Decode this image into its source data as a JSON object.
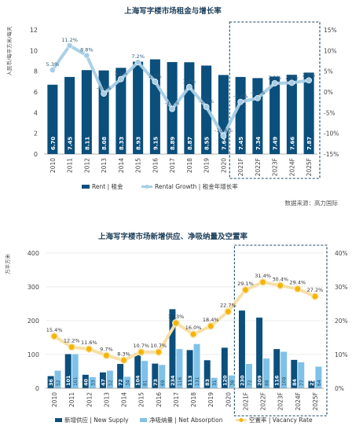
{
  "colors": {
    "bar_dark": "#0b4f7c",
    "line_light": "#a7cde6",
    "bar_light": "#7fc1e8",
    "vacancy_line": "#f7dfa6",
    "vacancy_marker": "#f4b400",
    "forecast_border": "#1d4a66",
    "axis_text": "#444444",
    "grid": "#d9d9d9"
  },
  "chart_data": [
    {
      "type": "bar",
      "title": "上海写字楼市场租金与增长率",
      "ylabel": "人民币/每平方米/每天",
      "categories": [
        "2010",
        "2011",
        "2012",
        "2013",
        "2014",
        "2015",
        "2016",
        "2017",
        "2018",
        "2019",
        "2020",
        "2021F",
        "2022F",
        "2023F",
        "2024F",
        "2025F"
      ],
      "forecast_from_index": 11,
      "ylim": [
        0,
        12
      ],
      "yticks": [
        "0",
        "2",
        "4",
        "6",
        "8",
        "10",
        "12"
      ],
      "y2lim": [
        -15,
        15
      ],
      "y2ticks": [
        "-15%",
        "-10%",
        "-5%",
        "0%",
        "5%",
        "10%",
        "15%"
      ],
      "series": [
        {
          "name": "Rent | 租金",
          "kind": "bar",
          "values": [
            6.7,
            7.45,
            8.11,
            8.08,
            8.33,
            8.93,
            9.15,
            8.89,
            8.87,
            8.55,
            7.64,
            7.45,
            7.34,
            7.49,
            7.66,
            7.87
          ],
          "labels": [
            "6.70",
            "7.45",
            "8.11",
            "8.08",
            "8.33",
            "8.93",
            "9.15",
            "8.89",
            "8.87",
            "8.55",
            "7.64",
            "7.45",
            "7.34",
            "7.49",
            "7.66",
            "7.87"
          ]
        },
        {
          "name": "Rental Growth | 租金年增长率",
          "kind": "line",
          "axis": "right",
          "values": [
            5.3,
            11.2,
            8.8,
            -0.4,
            3.1,
            7.2,
            2.5,
            -4.1,
            1.2,
            -3.6,
            -10.6,
            -2.4,
            -1.5,
            2.1,
            2.2,
            2.8
          ],
          "labels": [
            "5.3%",
            "11.2%",
            "8.8%",
            "-0.4%",
            "3.1%",
            "7.2%",
            "2.5%",
            "-4.1%",
            "1.2%",
            "-3.6%",
            "-10.6%",
            "-2.4%",
            "-1.5%",
            "2.1%",
            "2.2%",
            "2.8%"
          ]
        }
      ],
      "legend": [
        "Rent | 租金",
        "Rental Growth | 租金年增长率"
      ],
      "source": "数据来源：高力国际"
    },
    {
      "type": "bar",
      "title": "上海写字楼市场新增供应、净吸纳量及空置率",
      "ylabel": "万平方米",
      "categories": [
        "2010",
        "2011",
        "2012",
        "2013",
        "2014",
        "2015",
        "2016",
        "2017",
        "2018",
        "2019",
        "2020",
        "2021F",
        "2022F",
        "2023F",
        "2024F",
        "2025F"
      ],
      "forecast_from_index": 11,
      "ylim": [
        0,
        400
      ],
      "yticks": [
        "0",
        "100",
        "200",
        "300",
        "400"
      ],
      "y2lim": [
        0,
        40
      ],
      "y2ticks": [
        "0%",
        "10%",
        "20%",
        "30%",
        "40%"
      ],
      "series": [
        {
          "name": "新增供应 | New Supply",
          "kind": "bar",
          "values": [
            36,
            101,
            40,
            47,
            72,
            104,
            73,
            234,
            113,
            83,
            120,
            230,
            209,
            116,
            84,
            22
          ],
          "labels": [
            "36",
            "101",
            "40",
            "47",
            "72",
            "104",
            "73",
            "234",
            "113",
            "83",
            "120",
            "230",
            "209",
            "116",
            "84",
            "22"
          ]
        },
        {
          "name": "净吸纳量 | Net Absorption",
          "kind": "bar",
          "values": [
            52,
            101,
            33,
            52,
            34,
            81,
            69,
            116,
            131,
            31,
            38,
            72,
            88,
            108,
            77,
            64
          ],
          "labels": [
            "52",
            "101",
            "33",
            "52",
            "34",
            "81",
            "69",
            "116",
            "131",
            "31",
            "38",
            "72",
            "88",
            "108",
            "77",
            "64"
          ]
        },
        {
          "name": "空置率 | Vacancy Rate",
          "kind": "line",
          "axis": "right",
          "values": [
            15.4,
            12.2,
            11.6,
            9.7,
            8.3,
            10.7,
            10.7,
            19.3,
            16.0,
            18.4,
            22.7,
            29.1,
            31.4,
            30.4,
            29.4,
            27.2
          ],
          "labels": [
            "15.4%",
            "12.2%",
            "11.6%",
            "9.7%",
            "8.3%",
            "10.7%",
            "10.7%",
            "19.3%",
            "16.0%",
            "18.4%",
            "22.7%",
            "29.1%",
            "31.4%",
            "30.4%",
            "29.4%",
            "27.2%"
          ]
        }
      ],
      "legend": [
        "新增供应 | New Supply",
        "净吸纳量 | Net Absorption",
        "空置率 | Vacancy Rate"
      ]
    }
  ]
}
